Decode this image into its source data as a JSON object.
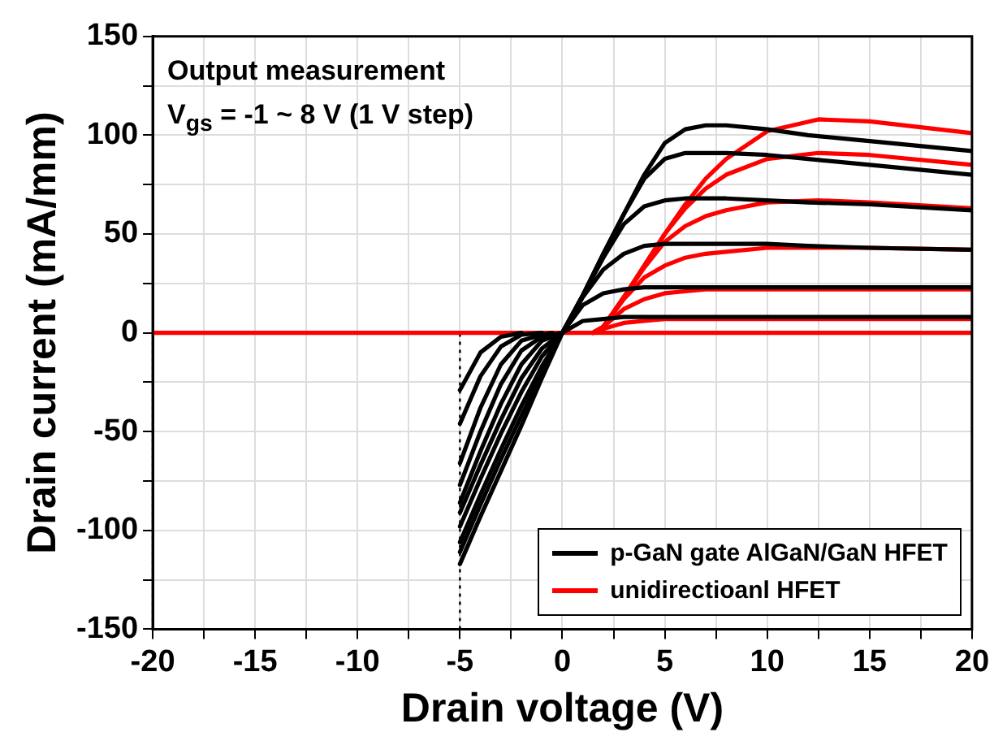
{
  "chart_data": {
    "type": "line",
    "xlabel": "Drain voltage (V)",
    "ylabel": "Drain current (mA/mm)",
    "annotations": [
      "Output measurement",
      "V$_{gs}$ = -1 ~ 8 V (1 V step)"
    ],
    "xlim": [
      -20,
      20
    ],
    "ylim": [
      -150,
      150
    ],
    "xticks": [
      -20,
      {
        "value": -17.5,
        "label": null
      },
      -15,
      {
        "value": -12.5,
        "label": null
      },
      -10,
      {
        "value": -7.5,
        "label": null
      },
      -5,
      {
        "value": -2.5,
        "label": null
      },
      0,
      {
        "value": 2.5,
        "label": null
      },
      5,
      {
        "value": 7.5,
        "label": null
      },
      10,
      {
        "value": 12.5,
        "label": null
      },
      15,
      {
        "value": 17.5,
        "label": null
      },
      20
    ],
    "yticks": [
      -150,
      {
        "value": -125,
        "label": null
      },
      -100,
      {
        "value": -75,
        "label": null
      },
      -50,
      {
        "value": -25,
        "label": null
      },
      0,
      {
        "value": 25,
        "label": null
      },
      50,
      {
        "value": 75,
        "label": null
      },
      100,
      {
        "value": 125,
        "label": null
      },
      150
    ],
    "grid": true,
    "legend": "bottom right",
    "marker": "none",
    "line_style": "solid",
    "ref_lines": [
      {
        "axis": "x",
        "value": -5,
        "label": null,
        "color": "#000000",
        "line_style": "dotted"
      },
      {
        "axis": "x",
        "value": -20,
        "label": null,
        "color": "#ff0000",
        "line_style": "dotted"
      }
    ],
    "series": [
      {
        "name": "p-GaN gate AlGaN/GaN HFET",
        "color": "#000000",
        "x": [
          -5,
          -4,
          -3,
          -2
        ],
        "values": [
          -29,
          -10,
          -2,
          0
        ]
      },
      {
        "color": "#000000",
        "x": [
          -5,
          -4,
          -3,
          -2,
          -1
        ],
        "values": [
          -46,
          -22,
          -7,
          -1,
          0
        ]
      },
      {
        "color": "#000000",
        "x": [
          -5,
          -4,
          -3,
          -2,
          -1,
          -0.5
        ],
        "values": [
          -66,
          -38,
          -16,
          -4,
          -1,
          0
        ]
      },
      {
        "color": "#000000",
        "x": [
          -5,
          -4,
          -3,
          -2,
          -1,
          0
        ],
        "values": [
          -77,
          -50,
          -26,
          -9,
          -2,
          0
        ]
      },
      {
        "color": "#000000",
        "x": [
          -5,
          -4,
          -3,
          -2,
          -1,
          0,
          1,
          2,
          3,
          4,
          5,
          6,
          7,
          8,
          10,
          12,
          15,
          20
        ],
        "values": [
          -86,
          -60,
          -36,
          -16,
          -4,
          0,
          6,
          7,
          8,
          8,
          8,
          8,
          8,
          8,
          8,
          8,
          8,
          8
        ]
      },
      {
        "color": "#000000",
        "x": [
          -5,
          -4,
          -3,
          -2,
          -1,
          0,
          1,
          2,
          3,
          4,
          5,
          6,
          7,
          8,
          10,
          12,
          15,
          20
        ],
        "values": [
          -91,
          -67,
          -44,
          -23,
          -8,
          0,
          14,
          20,
          22,
          23,
          23,
          23,
          23,
          23,
          23,
          23,
          23,
          23
        ]
      },
      {
        "color": "#000000",
        "x": [
          -5,
          -4,
          -3,
          -2,
          -1,
          0,
          1,
          2,
          3,
          4,
          5,
          6,
          7,
          8,
          10,
          12,
          15,
          20
        ],
        "values": [
          -98,
          -74,
          -51,
          -30,
          -12,
          0,
          18,
          32,
          40,
          44,
          45,
          45,
          45,
          45,
          45,
          44,
          43,
          42
        ]
      },
      {
        "color": "#000000",
        "x": [
          -5,
          -4,
          -3,
          -2,
          -1,
          0,
          1,
          2,
          3,
          4,
          5,
          6,
          7,
          8,
          10,
          12,
          15,
          20
        ],
        "values": [
          -106,
          -82,
          -59,
          -37,
          -17,
          0,
          19,
          38,
          55,
          64,
          67,
          68,
          68,
          68,
          67,
          66,
          65,
          62
        ]
      },
      {
        "color": "#000000",
        "x": [
          -5,
          -4,
          -3,
          -2,
          -1,
          0,
          1,
          2,
          3,
          4,
          5,
          6,
          7,
          8,
          10,
          12,
          15,
          20
        ],
        "values": [
          -111,
          -87,
          -64,
          -42,
          -20,
          0,
          19,
          40,
          60,
          78,
          88,
          91,
          91,
          91,
          90,
          88,
          85,
          80
        ]
      },
      {
        "color": "#000000",
        "x": [
          -5,
          -4,
          -3,
          -2,
          -1,
          0,
          1,
          2,
          3,
          4,
          5,
          6,
          7,
          8,
          10,
          12,
          15,
          20
        ],
        "values": [
          -117,
          -93,
          -70,
          -47,
          -23,
          0,
          19,
          40,
          60,
          80,
          96,
          103,
          105,
          105,
          103,
          100,
          97,
          92
        ]
      },
      {
        "color": "#ff0000",
        "x": [
          1.5,
          2,
          3,
          4,
          5,
          6,
          7,
          8,
          10,
          12.5,
          15,
          20
        ],
        "values": [
          0,
          2,
          5,
          6,
          7,
          7,
          7,
          7,
          7,
          7,
          7,
          7
        ]
      },
      {
        "color": "#ff0000",
        "x": [
          1.5,
          2,
          3,
          4,
          5,
          6,
          7,
          8,
          10,
          12.5,
          15,
          20
        ],
        "values": [
          0,
          3,
          12,
          17,
          20,
          21,
          22,
          22,
          22,
          22,
          22,
          22
        ]
      },
      {
        "color": "#ff0000",
        "x": [
          1.5,
          2,
          3,
          4,
          5,
          6,
          7,
          8,
          10,
          12.5,
          15,
          20
        ],
        "values": [
          0,
          3,
          17,
          28,
          34,
          38,
          40,
          41,
          43,
          43,
          43,
          42
        ]
      },
      {
        "color": "#ff0000",
        "x": [
          1.5,
          2,
          3,
          4,
          5,
          6,
          7,
          8,
          10,
          12.5,
          15,
          20
        ],
        "values": [
          0,
          3,
          18,
          33,
          46,
          54,
          59,
          62,
          66,
          67,
          66,
          63
        ]
      },
      {
        "color": "#ff0000",
        "x": [
          1.5,
          2,
          3,
          4,
          5,
          6,
          7,
          8,
          10,
          12.5,
          15,
          20
        ],
        "values": [
          0,
          3,
          18,
          34,
          50,
          63,
          73,
          80,
          88,
          91,
          90,
          85
        ]
      },
      {
        "color": "#ff0000",
        "x": [
          1.5,
          2,
          3,
          4,
          5,
          6,
          7,
          8,
          10,
          12.5,
          15,
          20
        ],
        "values": [
          0,
          3,
          18,
          34,
          50,
          65,
          78,
          88,
          102,
          108,
          107,
          101
        ]
      },
      {
        "name": "unidirectioanl HFET",
        "color": "#ff0000",
        "x": [
          -20,
          20
        ],
        "values": [
          0,
          0
        ]
      }
    ]
  }
}
